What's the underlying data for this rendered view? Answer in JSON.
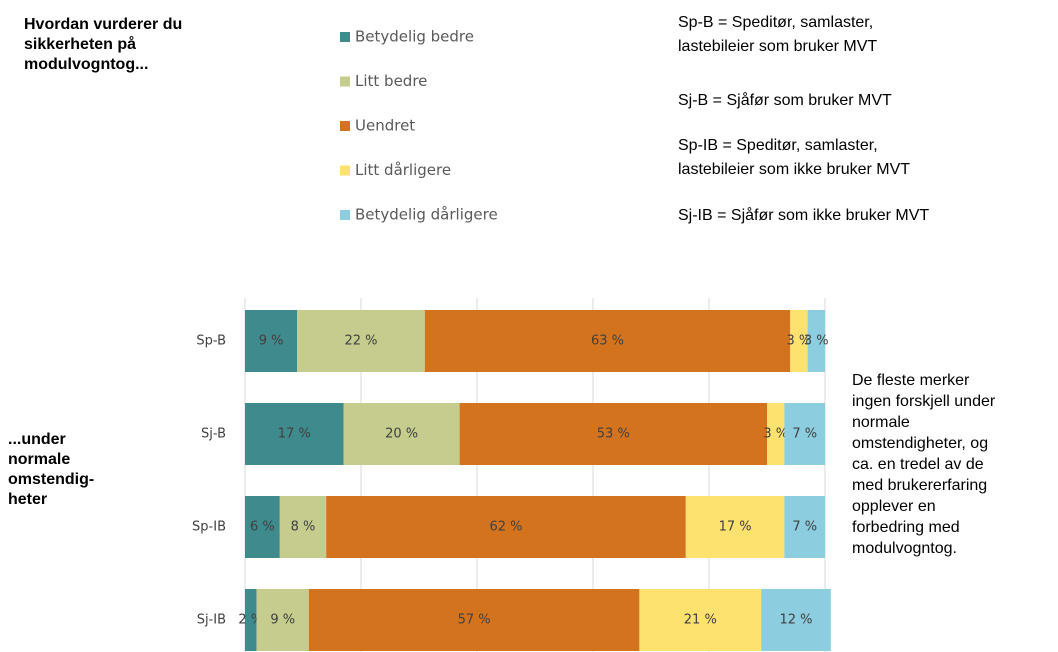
{
  "chart_data": {
    "type": "stacked-bar-horizontal",
    "title": "Hvordan vurderer du\nsikkerheten på\nmodulvogntog...",
    "y_label": "...under\nnormale\nomstendig-\nheter",
    "definitions": [
      "Sp-B = Speditør, samlaster,\nlastebileier som bruker MVT",
      "Sj-B = Sjåfør som bruker MVT",
      "Sp-IB = Speditør, samlaster,\nlastebileier som ikke bruker MVT",
      "Sj-IB = Sjåfør som ikke bruker MVT"
    ],
    "annotation": "De fleste merker\ningen forskjell under\nnormale\nomstendigheter, og\nca. en tredel av de\nmed brukererfaring\nopplever en\nforbedring med\nmodulvogntog.",
    "categories": [
      "Sp-B",
      "Sj-B",
      "Sp-IB",
      "Sj-IB"
    ],
    "xlim": [
      0,
      100
    ],
    "xticks": [
      0,
      20,
      40,
      60,
      80,
      100
    ],
    "grid": true,
    "series": [
      {
        "name": "Betydelig bedre",
        "color": "#3f8a8d",
        "values": [
          9,
          17,
          6,
          2
        ],
        "value_labels": [
          "9 %",
          "17 %",
          "6 %",
          "2 %"
        ]
      },
      {
        "name": "Litt bedre",
        "color": "#c5cc8e",
        "values": [
          22,
          20,
          8,
          9
        ],
        "value_labels": [
          "22 %",
          "20 %",
          "8 %",
          "9 %"
        ]
      },
      {
        "name": "Uendret",
        "color": "#d4731e",
        "values": [
          63,
          53,
          62,
          57
        ],
        "value_labels": [
          "63 %",
          "53 %",
          "62 %",
          "57 %"
        ]
      },
      {
        "name": "Litt dårligere",
        "color": "#fde26f",
        "values": [
          3,
          3,
          17,
          21
        ],
        "value_labels": [
          "3 %",
          "3 %",
          "17 %",
          "21 %"
        ]
      },
      {
        "name": "Betydelig dårligere",
        "color": "#8ccde0",
        "values": [
          3,
          7,
          7,
          12
        ],
        "value_labels": [
          "3 %",
          "7 %",
          "7 %",
          "12 %"
        ]
      }
    ]
  }
}
